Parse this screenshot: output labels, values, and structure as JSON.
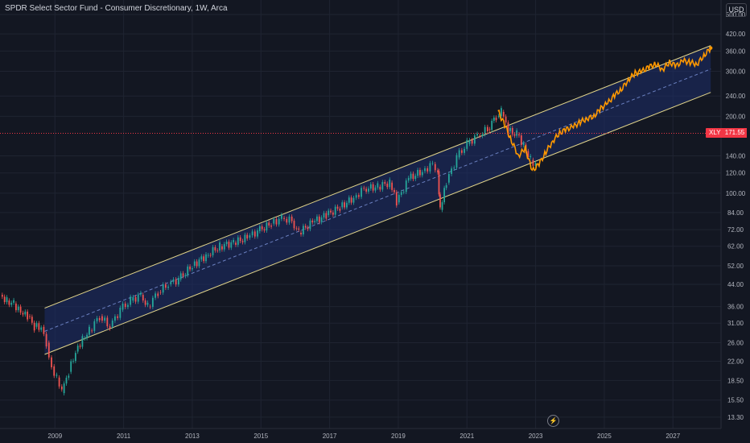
{
  "header": {
    "title": "SPDR Select Sector Fund - Consumer Discretionary, 1W, Arca",
    "currency": "USD"
  },
  "badges": {
    "symbol": "XLY",
    "last_price": "171.55"
  },
  "icons": {
    "replay": "lightning-icon"
  },
  "colors": {
    "background": "#131722",
    "grid": "#1f2431",
    "candle_up": "#26a69a",
    "candle_down": "#ef5350",
    "projection": "#ff9800",
    "channel_line": "#e2d58a",
    "channel_fill": "#1e2d6a",
    "midline": "#6a7fbf",
    "price_line": "#f23645",
    "axis_text": "#b2b5be"
  },
  "chart_data": {
    "type": "line",
    "title": "SPDR Select Sector Fund - Consumer Discretionary, 1W, Arca",
    "x_axis": {
      "ticks": [
        "2009",
        "2011",
        "2013",
        "2015",
        "2017",
        "2019",
        "2021",
        "2023",
        "2025",
        "2027"
      ],
      "range": [
        2007.4,
        2028.4
      ]
    },
    "y_axis": {
      "scale": "log",
      "range": [
        12,
        570
      ],
      "ticks": [
        "500.00",
        "420.00",
        "360.00",
        "300.00",
        "240.00",
        "200.00",
        "171.55",
        "140.00",
        "120.00",
        "100.00",
        "84.00",
        "72.00",
        "62.00",
        "52.00",
        "44.00",
        "36.00",
        "31.00",
        "26.00",
        "22.00",
        "18.50",
        "15.50",
        "13.30"
      ]
    },
    "current_price": 171.55,
    "series": [
      {
        "style": "candles",
        "x": [
          2007.4,
          2007.6,
          2007.8,
          2008.0,
          2008.2,
          2008.4,
          2008.6,
          2008.75,
          2008.9,
          2009.05,
          2009.2,
          2009.4,
          2009.6,
          2009.8,
          2010.0,
          2010.3,
          2010.6,
          2010.9,
          2011.2,
          2011.5,
          2011.7,
          2012.0,
          2012.3,
          2012.6,
          2013.0,
          2013.4,
          2013.8,
          2014.2,
          2014.6,
          2014.9,
          2015.3,
          2015.6,
          2015.9,
          2016.1,
          2016.5,
          2016.9,
          2017.3,
          2017.7,
          2018.0,
          2018.4,
          2018.75,
          2018.95,
          2019.3,
          2019.7,
          2020.0,
          2020.15,
          2020.22,
          2020.4,
          2020.7,
          2021.0,
          2021.3,
          2021.6,
          2021.85,
          2022.0,
          2022.2,
          2022.45,
          2022.65,
          2022.85,
          2023.0
        ],
        "y": [
          40,
          38,
          37,
          34,
          33,
          30,
          30,
          26,
          21,
          19,
          16.5,
          20,
          24,
          27,
          29,
          33,
          30,
          35,
          38,
          40,
          36,
          41,
          44,
          46,
          52,
          57,
          62,
          64,
          67,
          71,
          76,
          80,
          78,
          70,
          77,
          82,
          88,
          96,
          104,
          106,
          110,
          92,
          114,
          122,
          130,
          122,
          86,
          110,
          138,
          156,
          168,
          178,
          200,
          208,
          175,
          170,
          155,
          135,
          130
        ]
      },
      {
        "style": "projection",
        "x": [
          2021.9,
          2022.1,
          2022.3,
          2022.5,
          2022.7,
          2022.9,
          2023.1,
          2023.3,
          2023.5,
          2023.7,
          2023.9,
          2024.1,
          2024.3,
          2024.5,
          2024.7,
          2024.9,
          2025.1,
          2025.3,
          2025.5,
          2025.7,
          2025.9,
          2026.1,
          2026.3,
          2026.5,
          2026.7,
          2026.9,
          2027.1,
          2027.3,
          2027.5,
          2027.7,
          2027.9,
          2028.1
        ],
        "y": [
          210,
          185,
          160,
          140,
          150,
          122,
          130,
          145,
          160,
          172,
          178,
          182,
          190,
          196,
          200,
          215,
          225,
          242,
          255,
          278,
          295,
          300,
          312,
          320,
          305,
          325,
          315,
          330,
          325,
          320,
          345,
          370
        ]
      }
    ],
    "channel": {
      "upper": {
        "x": [
          2008.7,
          2028.1
        ],
        "y": [
          35.5,
          378
        ]
      },
      "lower": {
        "x": [
          2008.7,
          2028.1
        ],
        "y": [
          23.4,
          248
        ]
      },
      "mid": {
        "x": [
          2008.7,
          2028.1
        ],
        "y": [
          28.8,
          306
        ]
      }
    }
  }
}
